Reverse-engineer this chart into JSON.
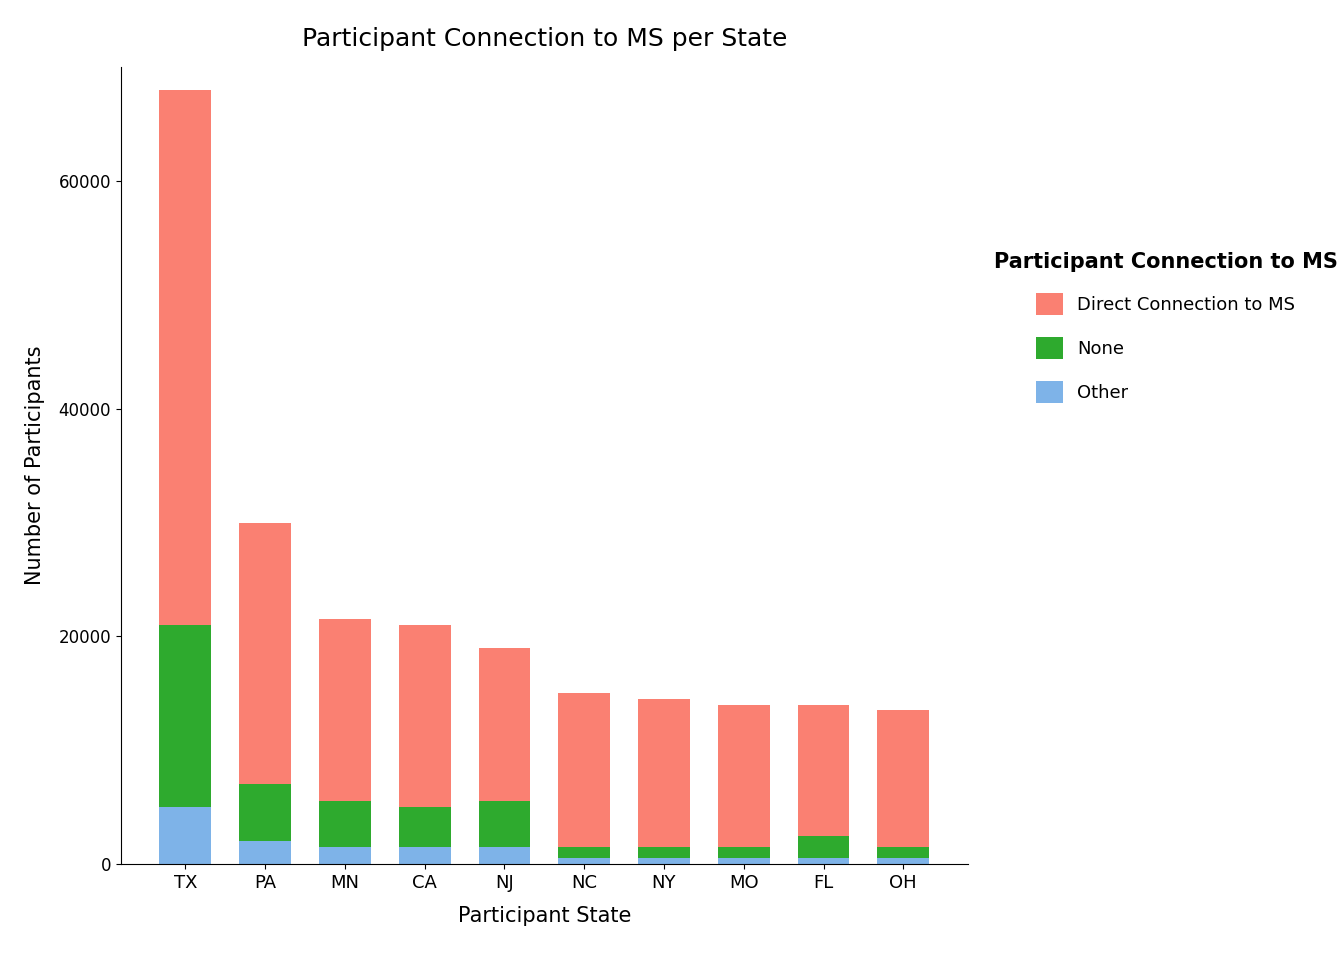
{
  "states": [
    "TX",
    "PA",
    "MN",
    "CA",
    "NJ",
    "NC",
    "NY",
    "MO",
    "FL",
    "OH"
  ],
  "direct": [
    47000,
    23000,
    16000,
    16000,
    13500,
    13500,
    13000,
    12500,
    11500,
    12000
  ],
  "none": [
    16000,
    5000,
    4000,
    3500,
    4000,
    1000,
    1000,
    1000,
    2000,
    1000
  ],
  "other": [
    5000,
    2000,
    1500,
    1500,
    1500,
    500,
    500,
    500,
    500,
    500
  ],
  "color_direct": "#FA8072",
  "color_none": "#2EAA2E",
  "color_other": "#7EB3E8",
  "title": "Participant Connection to MS per State",
  "xlabel": "Participant State",
  "ylabel": "Number of Participants",
  "legend_title": "Participant Connection to MS",
  "legend_labels": [
    "Direct Connection to MS",
    "None",
    "Other"
  ],
  "ylim": [
    0,
    70000
  ],
  "background_color": "#FFFFFF"
}
